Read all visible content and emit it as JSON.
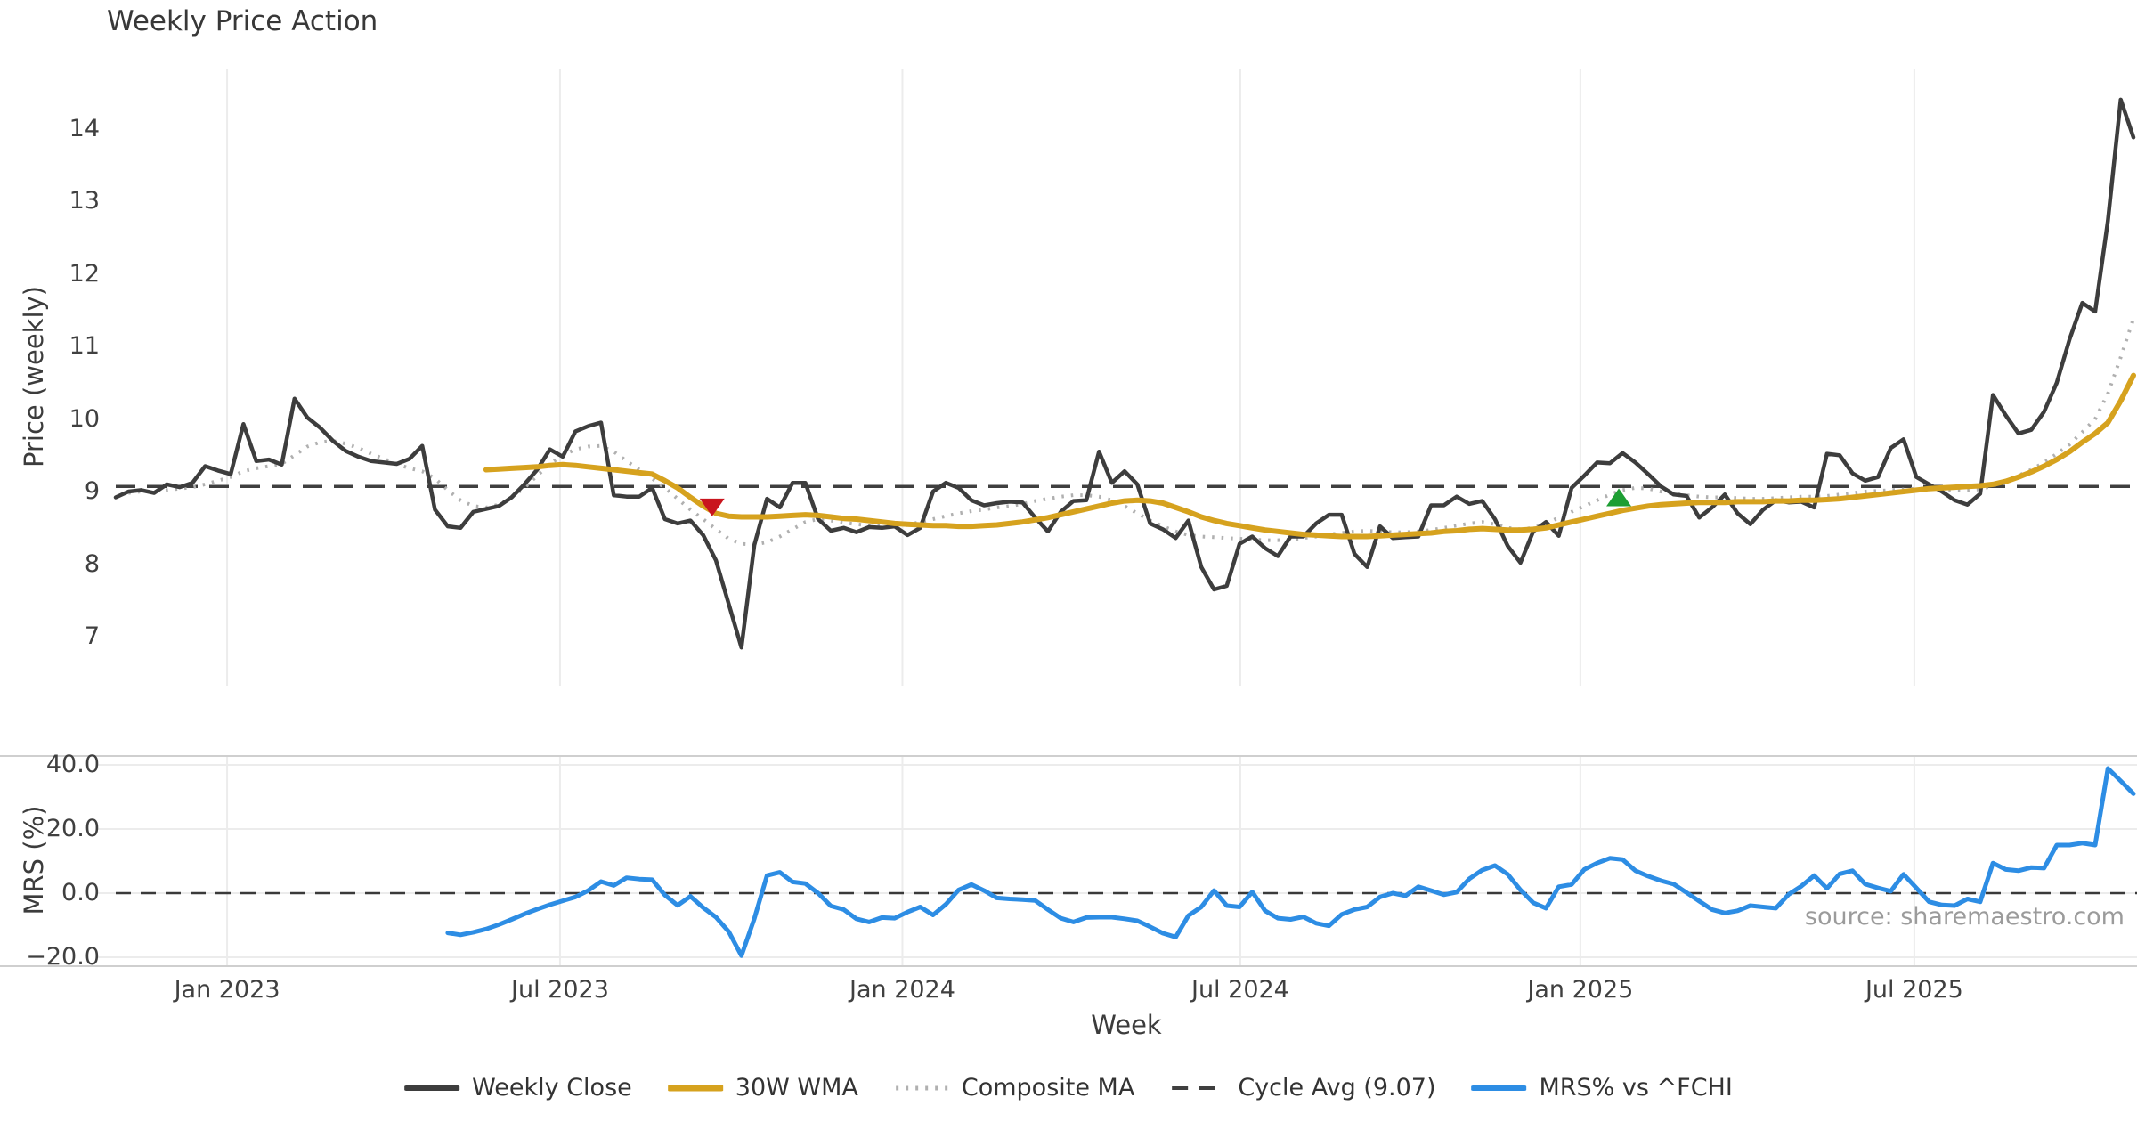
{
  "title": "Weekly Price Action",
  "axes": {
    "price_ylabel": "Price (weekly)",
    "mrs_ylabel": "MRS (%)",
    "xlabel": "Week",
    "source": "source: sharemaestro.com"
  },
  "colors": {
    "weekly_close": "#3d3d3d",
    "wma": "#d6a21e",
    "composite": "#b0b0b0",
    "cycle_avg": "#3f3f3f",
    "mrs": "#2d8de4",
    "sell_marker": "#c9151e",
    "buy_marker": "#1d9e33",
    "gridline": "#ececec",
    "spine": "#cfcfcf",
    "zero_line": "#3a3a3a"
  },
  "legend": [
    {
      "label": "Weekly Close",
      "color": "#3d3d3d",
      "style": "solid",
      "thickness": 6
    },
    {
      "label": "30W WMA",
      "color": "#d6a21e",
      "style": "solid",
      "thickness": 7
    },
    {
      "label": "Composite MA",
      "color": "#b0b0b0",
      "style": "dotted",
      "thickness": 5
    },
    {
      "label": "Cycle Avg (9.07)",
      "color": "#3f3f3f",
      "style": "dashed",
      "thickness": 4
    },
    {
      "label": "MRS% vs ^FCHI",
      "color": "#2d8de4",
      "style": "solid",
      "thickness": 6
    }
  ],
  "chart_data": {
    "type": "line",
    "x_unit": "week_index",
    "total_weeks": 159,
    "xticks": [
      {
        "label": "Jan 2023",
        "week": 8.72
      },
      {
        "label": "Jul 2023",
        "week": 34.79
      },
      {
        "label": "Jan 2024",
        "week": 61.6
      },
      {
        "label": "Jul 2024",
        "week": 88.06
      },
      {
        "label": "Jan 2025",
        "week": 114.69
      },
      {
        "label": "Jul 2025",
        "week": 140.84
      }
    ],
    "panels": [
      {
        "name": "price",
        "ylabel": "Price (weekly)",
        "ylim": [
          6.4,
          14.9
        ],
        "yticks": [
          {
            "label": "14",
            "v": 14
          },
          {
            "label": "13",
            "v": 13
          },
          {
            "label": "12",
            "v": 12
          },
          {
            "label": "11",
            "v": 11
          },
          {
            "label": "10",
            "v": 10
          },
          {
            "label": "9",
            "v": 9
          },
          {
            "label": "8",
            "v": 8
          },
          {
            "label": "7",
            "v": 7
          }
        ],
        "series": [
          {
            "name": "Weekly Close",
            "style": "solid",
            "color": "#3d3d3d",
            "start_week": 0,
            "values": [
              8.92,
              9.0,
              9.02,
              8.98,
              9.1,
              9.06,
              9.12,
              9.35,
              9.29,
              9.24,
              9.93,
              9.42,
              9.44,
              9.37,
              10.28,
              10.02,
              9.88,
              9.7,
              9.56,
              9.48,
              9.42,
              9.4,
              9.38,
              9.45,
              9.63,
              8.75,
              8.52,
              8.5,
              8.72,
              8.76,
              8.8,
              8.92,
              9.1,
              9.3,
              9.58,
              9.48,
              9.83,
              9.9,
              9.95,
              8.95,
              8.93,
              8.93,
              9.05,
              8.62,
              8.56,
              8.6,
              8.4,
              8.05,
              7.45,
              6.85,
              8.26,
              8.9,
              8.78,
              9.12,
              9.12,
              8.62,
              8.46,
              8.5,
              8.44,
              8.51,
              8.5,
              8.52,
              8.4,
              8.5,
              9.0,
              9.12,
              9.05,
              8.88,
              8.81,
              8.84,
              8.86,
              8.85,
              8.64,
              8.45,
              8.72,
              8.87,
              8.88,
              9.55,
              9.12,
              9.28,
              9.1,
              8.56,
              8.48,
              8.36,
              8.6,
              7.96,
              7.65,
              7.7,
              8.28,
              8.38,
              8.22,
              8.11,
              8.38,
              8.38,
              8.56,
              8.68,
              8.68,
              8.14,
              7.96,
              8.52,
              8.36,
              8.37,
              8.38,
              8.81,
              8.81,
              8.93,
              8.83,
              8.87,
              8.62,
              8.25,
              8.02,
              8.45,
              8.58,
              8.39,
              9.05,
              9.22,
              9.4,
              9.39,
              9.53,
              9.4,
              9.24,
              9.07,
              8.96,
              8.94,
              8.64,
              8.78,
              8.96,
              8.7,
              8.55,
              8.75,
              8.88,
              8.85,
              8.86,
              8.78,
              9.52,
              9.5,
              9.25,
              9.15,
              9.2,
              9.6,
              9.72,
              9.2,
              9.1,
              9.0,
              8.88,
              8.82,
              8.97,
              10.33,
              10.05,
              9.8,
              9.85,
              10.1,
              10.5,
              11.1,
              11.6,
              11.48,
              12.73,
              14.4,
              13.88
            ]
          },
          {
            "name": "30W WMA",
            "style": "solid",
            "color": "#d6a21e",
            "start_week": 29,
            "values": [
              9.3,
              9.31,
              9.32,
              9.33,
              9.34,
              9.36,
              9.37,
              9.36,
              9.34,
              9.32,
              9.3,
              9.28,
              9.26,
              9.24,
              9.15,
              9.05,
              8.92,
              8.8,
              8.7,
              8.66,
              8.65,
              8.65,
              8.65,
              8.66,
              8.67,
              8.68,
              8.67,
              8.65,
              8.63,
              8.62,
              8.6,
              8.58,
              8.56,
              8.55,
              8.54,
              8.53,
              8.53,
              8.52,
              8.52,
              8.53,
              8.54,
              8.56,
              8.58,
              8.61,
              8.64,
              8.68,
              8.72,
              8.76,
              8.8,
              8.84,
              8.87,
              8.88,
              8.87,
              8.84,
              8.78,
              8.72,
              8.65,
              8.6,
              8.56,
              8.53,
              8.5,
              8.47,
              8.45,
              8.43,
              8.41,
              8.4,
              8.39,
              8.38,
              8.38,
              8.38,
              8.39,
              8.4,
              8.41,
              8.42,
              8.43,
              8.45,
              8.46,
              8.48,
              8.49,
              8.48,
              8.47,
              8.47,
              8.48,
              8.5,
              8.54,
              8.58,
              8.62,
              8.66,
              8.7,
              8.74,
              8.77,
              8.8,
              8.82,
              8.83,
              8.84,
              8.85,
              8.85,
              8.85,
              8.86,
              8.86,
              8.86,
              8.87,
              8.87,
              8.88,
              8.88,
              8.89,
              8.9,
              8.92,
              8.94,
              8.96,
              8.98,
              9.0,
              9.02,
              9.04,
              9.05,
              9.06,
              9.07,
              9.08,
              9.1,
              9.14,
              9.2,
              9.27,
              9.35,
              9.44,
              9.55,
              9.68,
              9.8,
              9.95,
              10.25,
              10.6
            ]
          },
          {
            "name": "Composite MA",
            "style": "dotted",
            "color": "#b0b0b0",
            "start_week": 1,
            "values": [
              8.98,
              9.0,
              9.0,
              9.02,
              9.04,
              9.06,
              9.1,
              9.15,
              9.2,
              9.28,
              9.32,
              9.35,
              9.38,
              9.5,
              9.62,
              9.68,
              9.7,
              9.66,
              9.6,
              9.52,
              9.45,
              9.38,
              9.32,
              9.28,
              9.18,
              9.02,
              8.88,
              8.8,
              8.78,
              8.82,
              8.92,
              9.05,
              9.22,
              9.38,
              9.5,
              9.58,
              9.62,
              9.63,
              9.55,
              9.42,
              9.3,
              9.18,
              9.05,
              8.9,
              8.75,
              8.62,
              8.48,
              8.35,
              8.28,
              8.27,
              8.3,
              8.38,
              8.48,
              8.58,
              8.62,
              8.6,
              8.57,
              8.55,
              8.53,
              8.52,
              8.52,
              8.54,
              8.58,
              8.62,
              8.66,
              8.7,
              8.73,
              8.75,
              8.78,
              8.8,
              8.83,
              8.87,
              8.9,
              8.93,
              8.95,
              8.95,
              8.93,
              8.88,
              8.8,
              8.7,
              8.6,
              8.52,
              8.45,
              8.4,
              8.38,
              8.37,
              8.36,
              8.35,
              8.34,
              8.33,
              8.33,
              8.34,
              8.36,
              8.38,
              8.41,
              8.43,
              8.45,
              8.46,
              8.45,
              8.44,
              8.44,
              8.45,
              8.47,
              8.5,
              8.53,
              8.56,
              8.58,
              8.55,
              8.5,
              8.48,
              8.5,
              8.56,
              8.64,
              8.72,
              8.8,
              8.88,
              8.96,
              9.02,
              9.05,
              9.04,
              9.0,
              8.97,
              8.95,
              8.93,
              8.92,
              8.92,
              8.91,
              8.9,
              8.9,
              8.91,
              8.92,
              8.93,
              8.93,
              8.94,
              8.96,
              8.98,
              9.0,
              9.01,
              9.02,
              9.03,
              9.04,
              9.04,
              9.03,
              9.02,
              9.02,
              9.03,
              9.08,
              9.15,
              9.22,
              9.3,
              9.4,
              9.52,
              9.65,
              9.82,
              10.0,
              10.35,
              10.85,
              11.38
            ]
          },
          {
            "name": "Cycle Avg (9.07)",
            "style": "dashed",
            "color": "#3f3f3f",
            "const": 9.07
          }
        ],
        "markers": [
          {
            "type": "sell",
            "color": "#c9151e",
            "week": 46.7,
            "price": 8.78
          },
          {
            "type": "buy",
            "color": "#1d9e33",
            "week": 117.7,
            "price": 8.92
          }
        ]
      },
      {
        "name": "mrs",
        "ylabel": "MRS (%)",
        "ylim": [
          -22,
          42
        ],
        "yticks": [
          {
            "label": "40.0",
            "v": 40
          },
          {
            "label": "20.0",
            "v": 20
          },
          {
            "label": "0.0",
            "v": 0
          },
          {
            "label": "−20.0",
            "v": -20
          }
        ],
        "series": [
          {
            "name": "MRS% vs ^FCHI",
            "style": "solid",
            "color": "#2d8de4",
            "start_week": 26,
            "values": [
              -12.4,
              -13.0,
              -12.2,
              -11.2,
              -9.8,
              -8.2,
              -6.5,
              -5.0,
              -3.6,
              -2.4,
              -1.2,
              0.8,
              3.6,
              2.4,
              4.8,
              4.4,
              4.2,
              -0.6,
              -3.8,
              -1.0,
              -4.5,
              -7.5,
              -12.0,
              -19.5,
              -8.0,
              5.5,
              6.5,
              3.5,
              3.0,
              0.0,
              -4.0,
              -5.1,
              -8.0,
              -9.0,
              -7.6,
              -7.8,
              -5.9,
              -4.3,
              -6.8,
              -3.5,
              1.0,
              2.7,
              0.8,
              -1.5,
              -1.8,
              -2.0,
              -2.3,
              -5.1,
              -7.8,
              -9.0,
              -7.6,
              -7.5,
              -7.5,
              -8.0,
              -8.6,
              -10.5,
              -12.5,
              -13.7,
              -7.0,
              -4.3,
              0.8,
              -3.9,
              -4.3,
              0.4,
              -5.5,
              -7.8,
              -8.2,
              -7.4,
              -9.4,
              -10.2,
              -6.6,
              -5.1,
              -4.3,
              -1.2,
              0.0,
              -0.8,
              2.0,
              0.8,
              -0.5,
              0.3,
              4.5,
              7.2,
              8.6,
              5.9,
              1.0,
              -3.0,
              -4.7,
              2.0,
              2.7,
              7.4,
              9.4,
              10.9,
              10.5,
              7.0,
              5.3,
              3.9,
              2.8,
              0.2,
              -2.5,
              -5.1,
              -6.2,
              -5.5,
              -3.9,
              -4.3,
              -4.7,
              -0.4,
              2.2,
              5.5,
              1.5,
              6.0,
              7.0,
              2.8,
              1.6,
              0.6,
              5.9,
              1.6,
              -2.7,
              -3.7,
              -3.9,
              -1.8,
              -2.7,
              9.4,
              7.4,
              7.0,
              8.0,
              7.8,
              15.0,
              15.0,
              15.6,
              15.0,
              38.9,
              35.0,
              31.0
            ]
          },
          {
            "name": "Zero",
            "style": "dashed",
            "color": "#3a3a3a",
            "const": 0
          }
        ]
      }
    ]
  }
}
